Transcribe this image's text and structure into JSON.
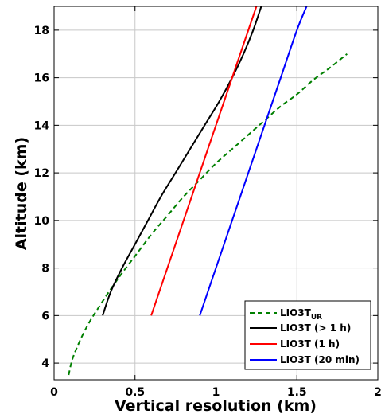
{
  "chart_data": {
    "type": "line",
    "xlabel": "Vertical resolution (km)",
    "ylabel": "Altitude (km)",
    "xlim": [
      0,
      2
    ],
    "ylim": [
      3.3,
      19
    ],
    "x_ticks": [
      0,
      0.5,
      1,
      1.5,
      2
    ],
    "x_tick_labels": [
      "0",
      "0.5",
      "1",
      "1.5",
      "2"
    ],
    "y_ticks": [
      4,
      6,
      8,
      10,
      12,
      14,
      16,
      18
    ],
    "y_tick_labels": [
      "4",
      "6",
      "8",
      "10",
      "12",
      "14",
      "16",
      "18"
    ],
    "grid": true,
    "legend_placement": "bottom-right",
    "series": [
      {
        "name": "LIO3T",
        "name_subscript": "UR",
        "color": "#008000",
        "dash": "dashed",
        "points": [
          [
            0.09,
            3.5
          ],
          [
            0.12,
            4.3
          ],
          [
            0.2,
            5.5
          ],
          [
            0.3,
            6.6
          ],
          [
            0.4,
            7.6
          ],
          [
            0.5,
            8.5
          ],
          [
            0.6,
            9.4
          ],
          [
            0.7,
            10.2
          ],
          [
            0.8,
            11.0
          ],
          [
            0.9,
            11.7
          ],
          [
            1.0,
            12.4
          ],
          [
            1.1,
            13.0
          ],
          [
            1.2,
            13.6
          ],
          [
            1.3,
            14.2
          ],
          [
            1.4,
            14.8
          ],
          [
            1.5,
            15.3
          ],
          [
            1.6,
            15.9
          ],
          [
            1.7,
            16.4
          ],
          [
            1.81,
            17.0
          ]
        ]
      },
      {
        "name": "LIO3T (> 1 h)",
        "color": "#000000",
        "dash": "solid",
        "points": [
          [
            0.3,
            6.0
          ],
          [
            0.35,
            7.0
          ],
          [
            0.42,
            8.0
          ],
          [
            0.5,
            9.0
          ],
          [
            0.58,
            10.0
          ],
          [
            0.66,
            11.0
          ],
          [
            0.75,
            12.0
          ],
          [
            0.84,
            13.0
          ],
          [
            0.93,
            14.0
          ],
          [
            1.02,
            15.0
          ],
          [
            1.1,
            16.0
          ],
          [
            1.17,
            17.0
          ],
          [
            1.23,
            18.0
          ],
          [
            1.28,
            19.0
          ]
        ]
      },
      {
        "name": "LIO3T (1 h)",
        "color": "#ff0000",
        "dash": "solid",
        "points": [
          [
            0.6,
            6.0
          ],
          [
            0.7,
            8.0
          ],
          [
            0.8,
            10.0
          ],
          [
            0.9,
            12.0
          ],
          [
            1.0,
            14.0
          ],
          [
            1.1,
            16.0
          ],
          [
            1.2,
            18.0
          ],
          [
            1.25,
            19.0
          ]
        ]
      },
      {
        "name": "LIO3T (20 min)",
        "color": "#0000ff",
        "dash": "solid",
        "points": [
          [
            0.9,
            6.0
          ],
          [
            1.0,
            8.0
          ],
          [
            1.1,
            10.0
          ],
          [
            1.2,
            12.0
          ],
          [
            1.3,
            14.0
          ],
          [
            1.4,
            16.0
          ],
          [
            1.5,
            18.0
          ],
          [
            1.56,
            19.0
          ]
        ]
      }
    ]
  }
}
